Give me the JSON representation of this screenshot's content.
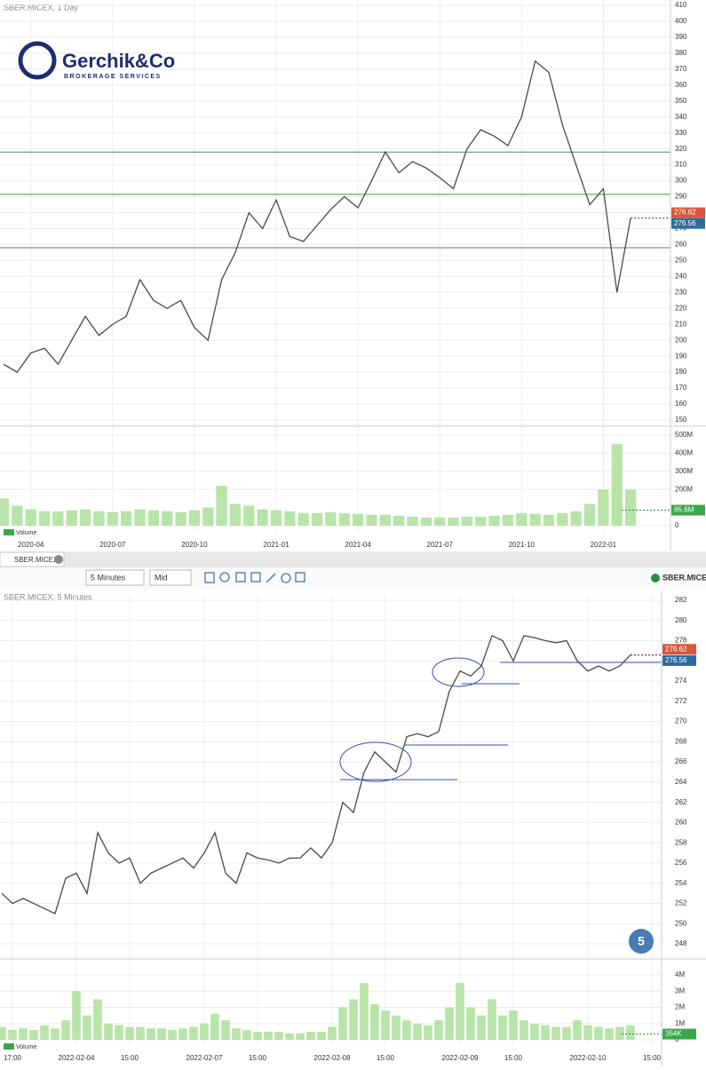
{
  "logo": {
    "name": "Gerchik&Co",
    "tagline": "BROKERAGE SERVICES"
  },
  "toolbar": {
    "tab": "SBER.MICEX",
    "interval": "5 Minutes",
    "price_mode": "Mid",
    "symbol": "SBER.MICEX"
  },
  "badge": "5",
  "chart_data": [
    {
      "type": "line",
      "title": "SBER.MICEX, 1 Day",
      "color": "#4a4a4a",
      "grid": true,
      "categories": [
        null,
        null,
        "2020-04",
        null,
        null,
        null,
        null,
        null,
        "2020-07",
        null,
        null,
        null,
        null,
        null,
        "2020-10",
        null,
        null,
        null,
        null,
        null,
        "2021-01",
        null,
        null,
        null,
        null,
        null,
        "2021-04",
        null,
        null,
        null,
        null,
        null,
        "2021-07",
        null,
        null,
        null,
        null,
        null,
        "2021-10",
        null,
        null,
        null,
        null,
        null,
        "2022-01",
        null,
        null
      ],
      "values": [
        185,
        180,
        192,
        195,
        185,
        200,
        215,
        203,
        210,
        215,
        238,
        225,
        220,
        225,
        208,
        200,
        238,
        255,
        280,
        270,
        288,
        265,
        262,
        272,
        282,
        290,
        283,
        300,
        318,
        305,
        312,
        308,
        302,
        295,
        320,
        332,
        328,
        322,
        340,
        375,
        368,
        335,
        310,
        285,
        295,
        230,
        276.6
      ],
      "ylim": [
        150,
        410
      ],
      "yticks": [
        150,
        160,
        170,
        180,
        190,
        200,
        210,
        220,
        230,
        240,
        250,
        260,
        270,
        280,
        290,
        300,
        310,
        320,
        330,
        340,
        350,
        360,
        370,
        380,
        390,
        400,
        410
      ],
      "levels": [
        318,
        291.5,
        258
      ],
      "level_color": "#4f8a5a",
      "last_prices": [
        {
          "value": 276.62,
          "color": "#d9573b"
        },
        {
          "value": 276.56,
          "color": "#2f6c9e"
        }
      ],
      "volume": {
        "name": "Volume",
        "color": "#b8e4a8",
        "values": [
          150000000,
          110000000,
          90000000,
          80000000,
          80000000,
          85000000,
          90000000,
          80000000,
          75000000,
          80000000,
          90000000,
          85000000,
          80000000,
          75000000,
          85000000,
          100000000,
          220000000,
          120000000,
          110000000,
          90000000,
          85000000,
          80000000,
          70000000,
          70000000,
          75000000,
          70000000,
          65000000,
          60000000,
          60000000,
          55000000,
          50000000,
          45000000,
          45000000,
          45000000,
          50000000,
          50000000,
          55000000,
          60000000,
          70000000,
          65000000,
          60000000,
          70000000,
          80000000,
          120000000,
          200000000,
          450000000,
          200000000
        ],
        "ylim": [
          0,
          500000000
        ],
        "yticks": [
          0,
          {
            "value": 200000000,
            "label": "200M"
          },
          {
            "value": 300000000,
            "label": "300M"
          },
          {
            "value": 400000000,
            "label": "400M"
          },
          {
            "value": 500000000,
            "label": "500M"
          }
        ],
        "last": {
          "value": 85600000,
          "label": "85.6M"
        }
      }
    },
    {
      "type": "line",
      "title": "SBER.MICEX, 5 Minutes",
      "color": "#4a4a4a",
      "grid": true,
      "categories": [
        null,
        "17:00",
        null,
        null,
        null,
        null,
        null,
        "2022-02-04",
        null,
        null,
        null,
        null,
        "15:00",
        null,
        null,
        null,
        null,
        null,
        null,
        "2022-02-07",
        null,
        null,
        null,
        null,
        "15:00",
        null,
        null,
        null,
        null,
        null,
        null,
        "2022-02-08",
        null,
        null,
        null,
        null,
        "15:00",
        null,
        null,
        null,
        null,
        null,
        null,
        "2022-02-09",
        null,
        null,
        null,
        null,
        "15:00",
        null,
        null,
        null,
        null,
        null,
        null,
        "2022-02-10",
        null,
        null,
        null,
        null,
        null,
        "15:00"
      ],
      "values": [
        253,
        252,
        252.5,
        252,
        251.5,
        251,
        254.5,
        255,
        253,
        259,
        257,
        256,
        256.5,
        254,
        255,
        255.5,
        256,
        256.5,
        255.5,
        257,
        259,
        255,
        254,
        257,
        256.5,
        256.3,
        256,
        256.5,
        256.5,
        257.5,
        256.5,
        258,
        262,
        261,
        265,
        267,
        266,
        265,
        268.5,
        268.8,
        268.5,
        269,
        273,
        275,
        274.5,
        275.5,
        278.5,
        278,
        276,
        278.5,
        278.3,
        278,
        277.8,
        278,
        276,
        275,
        275.5,
        275,
        275.5,
        276.6,
        null,
        null
      ],
      "ylim": [
        248,
        282
      ],
      "yticks": [
        248,
        250,
        252,
        254,
        256,
        258,
        260,
        262,
        264,
        266,
        268,
        270,
        272,
        274,
        276,
        278,
        280,
        282
      ],
      "last_prices": [
        {
          "value": 276.62,
          "color": "#d9573b"
        },
        {
          "value": 276.56,
          "color": "#2f6c9e"
        }
      ],
      "volume": {
        "name": "Volume",
        "color": "#b8e4a8",
        "values": [
          800000,
          600000,
          700000,
          600000,
          900000,
          700000,
          1200000,
          3000000,
          1500000,
          2500000,
          1000000,
          900000,
          800000,
          800000,
          700000,
          700000,
          600000,
          700000,
          800000,
          1000000,
          1600000,
          1200000,
          700000,
          600000,
          500000,
          500000,
          500000,
          400000,
          400000,
          500000,
          500000,
          800000,
          2000000,
          2500000,
          3500000,
          2200000,
          1800000,
          1500000,
          1200000,
          1000000,
          900000,
          1200000,
          2000000,
          3500000,
          2000000,
          1500000,
          2500000,
          1500000,
          1800000,
          1200000,
          1000000,
          900000,
          800000,
          800000,
          1200000,
          900000,
          800000,
          700000,
          800000,
          900000,
          null,
          null
        ],
        "ylim": [
          0,
          4000000
        ],
        "yticks": [
          0,
          {
            "value": 1000000,
            "label": "1M"
          },
          {
            "value": 2000000,
            "label": "2M"
          },
          {
            "value": 3000000,
            "label": "3M"
          },
          {
            "value": 4000000,
            "label": "4M"
          }
        ],
        "last": {
          "value": 354000,
          "label": "354K"
        }
      }
    }
  ]
}
